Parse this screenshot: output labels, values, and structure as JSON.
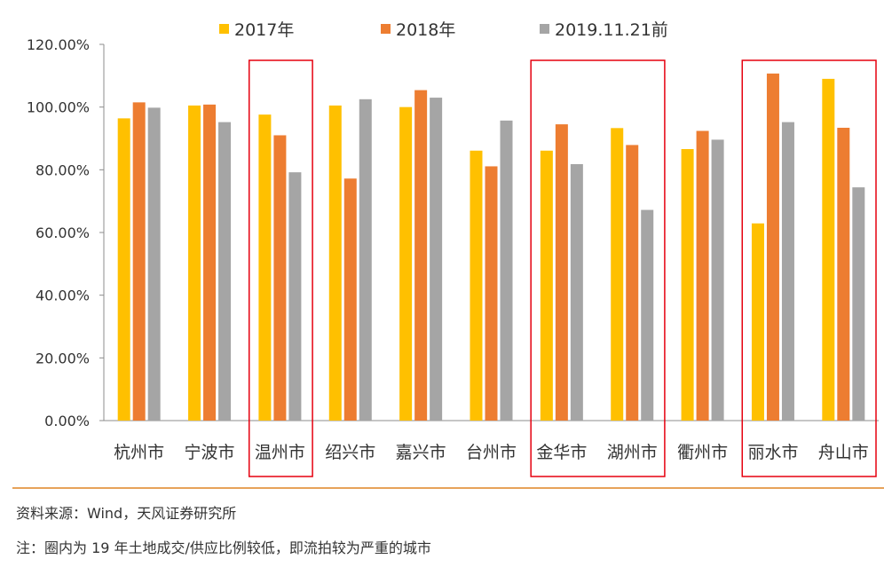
{
  "chart_data": {
    "type": "bar",
    "categories": [
      "杭州市",
      "宁波市",
      "温州市",
      "绍兴市",
      "嘉兴市",
      "台州市",
      "金华市",
      "湖州市",
      "衢州市",
      "丽水市",
      "舟山市"
    ],
    "series": [
      {
        "name": "2017年",
        "color": "#FFC000",
        "values": [
          96.4,
          100.5,
          97.6,
          100.5,
          100.0,
          86.1,
          86.1,
          93.3,
          86.6,
          62.9,
          109.0
        ]
      },
      {
        "name": "2018年",
        "color": "#ED7D31",
        "values": [
          101.5,
          100.8,
          91.0,
          77.2,
          105.4,
          81.1,
          94.5,
          87.9,
          92.4,
          110.7,
          93.4
        ]
      },
      {
        "name": "2019.11.21前",
        "color": "#A5A5A5",
        "values": [
          99.8,
          95.2,
          79.2,
          102.5,
          103.0,
          95.7,
          81.8,
          67.2,
          89.6,
          95.2,
          74.4
        ]
      }
    ],
    "yticks": [
      "0.00%",
      "20.00%",
      "40.00%",
      "60.00%",
      "80.00%",
      "100.00%",
      "120.00%"
    ],
    "ylim": [
      0,
      120
    ],
    "highlighted_groups": [
      [
        2
      ],
      [
        6,
        7
      ],
      [
        9,
        10
      ]
    ],
    "highlight_color": "#E5000F"
  },
  "source_text": "资料来源：Wind，天风证券研究所",
  "note_text": "注：圈内为 19 年土地成交/供应比例较低，即流拍较为严重的城市"
}
